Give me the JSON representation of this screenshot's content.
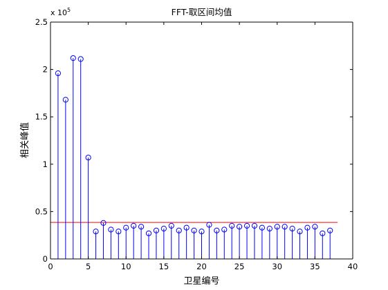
{
  "chart_data": {
    "type": "stem",
    "title": "FFT-取区间均值",
    "xlabel": "卫星编号",
    "ylabel": "相关峰值",
    "xlim": [
      0,
      40
    ],
    "ylim": [
      0,
      250000
    ],
    "x_ticks": [
      "0",
      "5",
      "10",
      "15",
      "20",
      "25",
      "30",
      "35",
      "40"
    ],
    "y_ticks": [
      "0",
      "0.5",
      "1",
      "1.5",
      "2",
      "2.5"
    ],
    "y_multiplier": {
      "base": "x 10",
      "exponent": "5"
    },
    "series": [
      {
        "color": "#0000ff",
        "marker": "circle-open",
        "x": [
          1,
          2,
          3,
          4,
          5,
          6,
          7,
          8,
          9,
          10,
          11,
          12,
          13,
          14,
          15,
          16,
          17,
          18,
          19,
          20,
          21,
          22,
          23,
          24,
          25,
          26,
          27,
          28,
          29,
          30,
          31,
          32,
          33,
          34,
          35,
          36,
          37
        ],
        "values": [
          196000,
          168000,
          212000,
          211000,
          107000,
          29000,
          38000,
          31000,
          29000,
          33000,
          35000,
          34000,
          27000,
          30000,
          32000,
          35000,
          30000,
          33000,
          30000,
          29000,
          36000,
          30000,
          31000,
          35000,
          34000,
          35000,
          35000,
          33000,
          32000,
          34000,
          34000,
          32000,
          29000,
          33000,
          34000,
          27000,
          30000
        ]
      }
    ],
    "threshold": {
      "y": 38500,
      "x_range": [
        0,
        38
      ],
      "color": "#ff0000"
    },
    "grid": false,
    "legend": "none"
  }
}
